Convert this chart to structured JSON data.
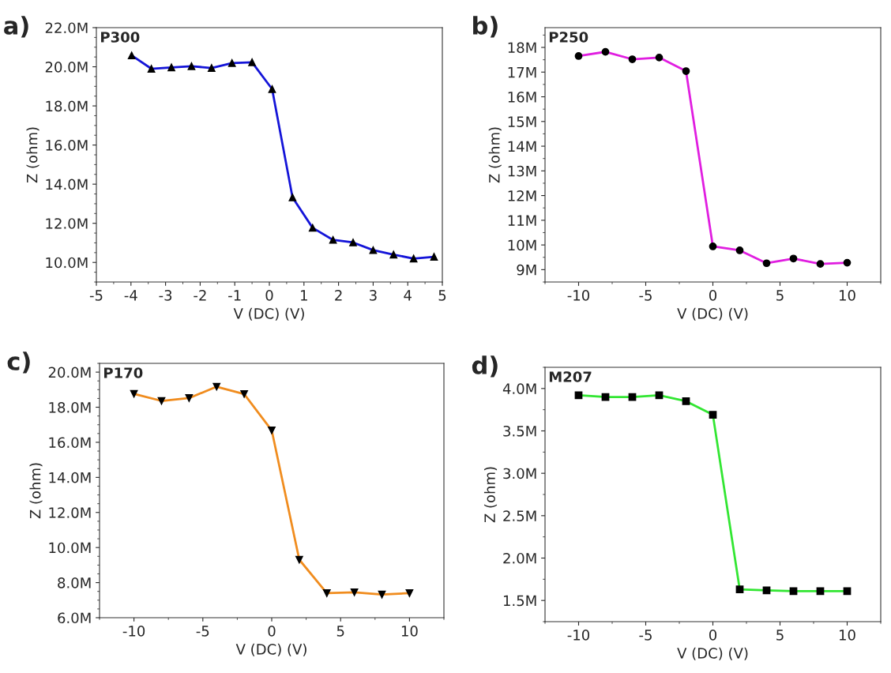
{
  "chart_data": [
    {
      "type": "line",
      "title": "a)",
      "annotations": [
        "P300"
      ],
      "xlabel": "V (DC) (V)",
      "ylabel": "Z (ohm)",
      "marker": "triangle",
      "grid": false,
      "legend": false,
      "x": [
        -3.98,
        -3.41,
        -2.83,
        -2.25,
        -1.67,
        -1.08,
        -0.5,
        0.08,
        0.67,
        1.25,
        1.84,
        2.42,
        3.0,
        3.59,
        4.17,
        4.76
      ],
      "series": [
        {
          "color": "#1414d8",
          "values": [
            20.58,
            19.9,
            19.97,
            20.03,
            19.94,
            20.19,
            20.23,
            18.86,
            13.32,
            11.77,
            11.15,
            11.02,
            10.63,
            10.4,
            10.2,
            10.29
          ]
        }
      ],
      "xlim": [
        -5,
        5
      ],
      "xticks": [
        -5,
        -4,
        -3,
        -2,
        -1,
        0,
        1,
        2,
        3,
        4,
        5
      ],
      "ylim": [
        9.0,
        22.0
      ],
      "yticks": [
        {
          "value": 10,
          "label": "10.0M"
        },
        {
          "value": 12,
          "label": "12.0M"
        },
        {
          "value": 14,
          "label": "14.0M"
        },
        {
          "value": 16,
          "label": "16.0M"
        },
        {
          "value": 18,
          "label": "18.0M"
        },
        {
          "value": 20,
          "label": "20.0M"
        },
        {
          "value": 22,
          "label": "22.0M"
        }
      ]
    },
    {
      "type": "line",
      "title": "b)",
      "annotations": [
        "P250"
      ],
      "xlabel": "V (DC) (V)",
      "ylabel": "Z (ohm)",
      "marker": "circle",
      "grid": false,
      "legend": false,
      "x": [
        -10,
        -8,
        -6,
        -4,
        -2,
        0,
        2,
        4,
        6,
        8,
        10
      ],
      "series": [
        {
          "color": "#e01ee0",
          "values": [
            17.65,
            17.82,
            17.52,
            17.59,
            17.04,
            9.94,
            9.78,
            9.26,
            9.45,
            9.23,
            9.28
          ]
        }
      ],
      "xlim": [
        -12.5,
        12.5
      ],
      "xticks": [
        -10,
        -5,
        0,
        5,
        10
      ],
      "ylim": [
        8.5,
        18.8
      ],
      "yticks": [
        {
          "value": 9,
          "label": "9M"
        },
        {
          "value": 10,
          "label": "10M"
        },
        {
          "value": 11,
          "label": "11M"
        },
        {
          "value": 12,
          "label": "12M"
        },
        {
          "value": 13,
          "label": "13M"
        },
        {
          "value": 14,
          "label": "14M"
        },
        {
          "value": 15,
          "label": "15M"
        },
        {
          "value": 16,
          "label": "16M"
        },
        {
          "value": 17,
          "label": "17M"
        },
        {
          "value": 18,
          "label": "18M"
        }
      ]
    },
    {
      "type": "line",
      "title": "c)",
      "annotations": [
        "P170"
      ],
      "xlabel": "V (DC) (V)",
      "ylabel": "Z (ohm)",
      "marker": "triangle_down",
      "grid": false,
      "legend": false,
      "x": [
        -10,
        -8,
        -6,
        -4,
        -2,
        0,
        2,
        4,
        6,
        8,
        10
      ],
      "series": [
        {
          "color": "#f08c1e",
          "values": [
            18.76,
            18.36,
            18.52,
            19.17,
            18.75,
            16.68,
            9.31,
            7.4,
            7.45,
            7.32,
            7.4
          ]
        }
      ],
      "xlim": [
        -12.5,
        12.5
      ],
      "xticks": [
        -10,
        -5,
        0,
        5,
        10
      ],
      "ylim": [
        6.0,
        20.5
      ],
      "yticks": [
        {
          "value": 6,
          "label": "6.0M"
        },
        {
          "value": 8,
          "label": "8.0M"
        },
        {
          "value": 10,
          "label": "10.0M"
        },
        {
          "value": 12,
          "label": "12.0M"
        },
        {
          "value": 14,
          "label": "14.0M"
        },
        {
          "value": 16,
          "label": "16.0M"
        },
        {
          "value": 18,
          "label": "18.0M"
        },
        {
          "value": 20,
          "label": "20.0M"
        }
      ]
    },
    {
      "type": "line",
      "title": "d)",
      "annotations": [
        "M207"
      ],
      "xlabel": "V (DC) (V)",
      "ylabel": "Z (ohm)",
      "marker": "square",
      "grid": false,
      "legend": false,
      "x": [
        -10,
        -8,
        -6,
        -4,
        -2,
        0,
        2,
        4,
        6,
        8,
        10
      ],
      "series": [
        {
          "color": "#32e632",
          "values": [
            3.92,
            3.9,
            3.9,
            3.92,
            3.85,
            3.69,
            1.63,
            1.62,
            1.61,
            1.61,
            1.61
          ]
        }
      ],
      "xlim": [
        -12.5,
        12.5
      ],
      "xticks": [
        -10,
        -5,
        0,
        5,
        10
      ],
      "ylim": [
        1.25,
        4.25
      ],
      "yticks": [
        {
          "value": 1.5,
          "label": "1.5M"
        },
        {
          "value": 2.0,
          "label": "2.0M"
        },
        {
          "value": 2.5,
          "label": "2.5M"
        },
        {
          "value": 3.0,
          "label": "3.0M"
        },
        {
          "value": 3.5,
          "label": "3.5M"
        },
        {
          "value": 4.0,
          "label": "4.0M"
        }
      ]
    }
  ]
}
